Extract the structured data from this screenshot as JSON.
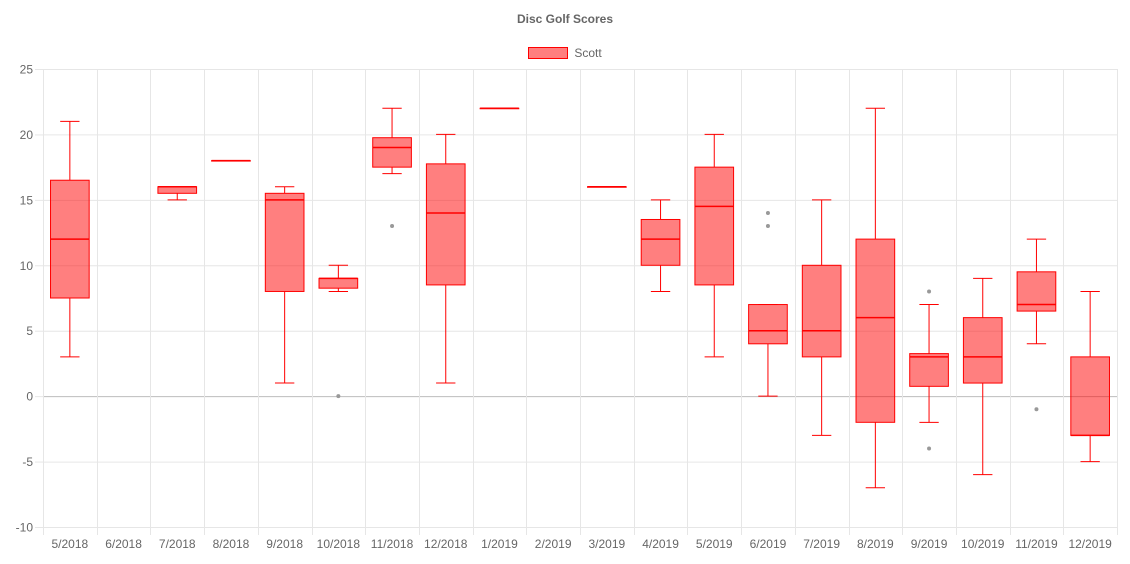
{
  "chart_data": {
    "type": "boxplot",
    "title": "Disc Golf Scores",
    "legend": {
      "position": "top",
      "entries": [
        "Scott"
      ]
    },
    "colors": {
      "box_fill": "rgba(255,0,0,0.5)",
      "stroke": "#ff0000",
      "outlier": "#999999",
      "grid": "#e6e6e6",
      "zero_line": "#bdbdbd",
      "tick_text": "#666666"
    },
    "grid": true,
    "ylim": [
      -10,
      25
    ],
    "yticks": [
      -10,
      -5,
      0,
      5,
      10,
      15,
      20,
      25
    ],
    "categories": [
      "5/2018",
      "6/2018",
      "7/2018",
      "8/2018",
      "9/2018",
      "10/2018",
      "11/2018",
      "12/2018",
      "1/2019",
      "2/2019",
      "3/2019",
      "4/2019",
      "5/2019",
      "6/2019",
      "7/2019",
      "8/2019",
      "9/2019",
      "10/2019",
      "11/2019",
      "12/2019"
    ],
    "series": [
      {
        "name": "Scott",
        "boxes": [
          {
            "min": 3,
            "q1": 7.5,
            "median": 12,
            "q3": 16.5,
            "max": 21,
            "outliers": []
          },
          null,
          {
            "min": 15,
            "q1": 15.5,
            "median": 16,
            "q3": 16,
            "max": 16,
            "outliers": []
          },
          {
            "min": 18,
            "q1": 18,
            "median": 18,
            "q3": 18,
            "max": 18,
            "outliers": []
          },
          {
            "min": 1,
            "q1": 8,
            "median": 15,
            "q3": 15.5,
            "max": 16,
            "outliers": []
          },
          {
            "min": 8,
            "q1": 8.25,
            "median": 9,
            "q3": 9,
            "max": 10,
            "outliers": [
              0
            ]
          },
          {
            "min": 17,
            "q1": 17.5,
            "median": 19,
            "q3": 19.75,
            "max": 22,
            "outliers": [
              13
            ]
          },
          {
            "min": 1,
            "q1": 8.5,
            "median": 14,
            "q3": 17.75,
            "max": 20,
            "outliers": []
          },
          {
            "min": 22,
            "q1": 22,
            "median": 22,
            "q3": 22,
            "max": 22,
            "outliers": []
          },
          null,
          {
            "min": 16,
            "q1": 16,
            "median": 16,
            "q3": 16,
            "max": 16,
            "outliers": []
          },
          {
            "min": 8,
            "q1": 10,
            "median": 12,
            "q3": 13.5,
            "max": 15,
            "outliers": []
          },
          {
            "min": 3,
            "q1": 8.5,
            "median": 14.5,
            "q3": 17.5,
            "max": 20,
            "outliers": []
          },
          {
            "min": 0,
            "q1": 4,
            "median": 5,
            "q3": 7,
            "max": 7,
            "outliers": [
              13,
              14
            ]
          },
          {
            "min": -3,
            "q1": 3,
            "median": 5,
            "q3": 10,
            "max": 15,
            "outliers": []
          },
          {
            "min": -7,
            "q1": -2,
            "median": 6,
            "q3": 12,
            "max": 22,
            "outliers": []
          },
          {
            "min": -2,
            "q1": 0.75,
            "median": 3,
            "q3": 3.25,
            "max": 7,
            "outliers": [
              8,
              -4
            ]
          },
          {
            "min": -6,
            "q1": 1,
            "median": 3,
            "q3": 6,
            "max": 9,
            "outliers": []
          },
          {
            "min": 4,
            "q1": 6.5,
            "median": 7,
            "q3": 9.5,
            "max": 12,
            "outliers": [
              -1
            ]
          },
          {
            "min": -5,
            "q1": -3,
            "median": -3,
            "q3": 3,
            "max": 8,
            "outliers": []
          }
        ]
      }
    ]
  }
}
